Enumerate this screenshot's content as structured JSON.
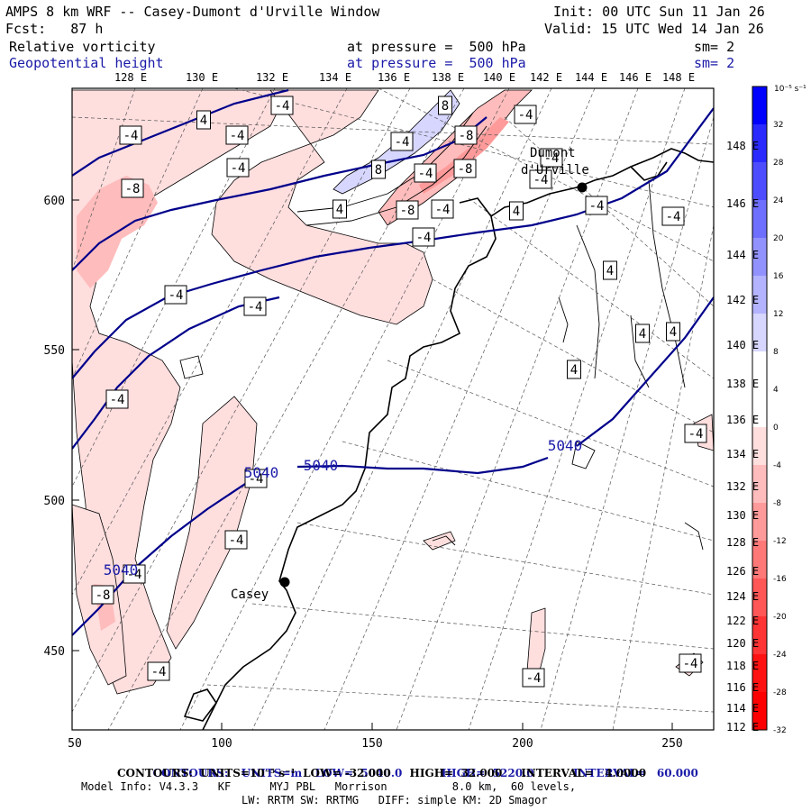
{
  "header": {
    "title": "AMPS 8 km WRF -- Casey-Dumont d'Urville Window",
    "init": "Init: 00 UTC Sun 11 Jan 26",
    "fcst": "Fcst:   87 h",
    "valid": "Valid: 15 UTC Wed 14 Jan 26",
    "field1": {
      "name": "Relative vorticity",
      "pressure": "at pressure =  500 hPa",
      "sm": "sm= 2"
    },
    "field2": {
      "name": "Geopotential height",
      "pressure": "at pressure =  500 hPa",
      "sm": "sm= 2"
    }
  },
  "axes": {
    "top_lon_labels": [
      "128 E",
      "130 E",
      "132 E",
      "134 E",
      "136 E",
      "138 E",
      "140 E",
      "142 E",
      "144 E",
      "146 E",
      "148 E"
    ],
    "right_lon_labels": [
      "148 E",
      "146 E",
      "144 E",
      "142 E",
      "140 E",
      "138 E",
      "136 E",
      "134 E",
      "132 E",
      "130 E",
      "128 E",
      "126 E",
      "124 E",
      "122 E",
      "120 E",
      "118 E",
      "116 E",
      "114 E",
      "112 E"
    ],
    "x_ticks": [
      "50",
      "100",
      "150",
      "200",
      "250"
    ],
    "y_ticks": [
      "600",
      "550",
      "500",
      "450"
    ]
  },
  "colorbar": {
    "unit_label": "10⁻⁵ s⁻¹",
    "labels": [
      "32",
      "28",
      "24",
      "20",
      "16",
      "12",
      "8",
      "4",
      "0",
      "-4",
      "-8",
      "-12",
      "-16",
      "-20",
      "-24",
      "-28",
      "-32"
    ],
    "colors": [
      "#0000ff",
      "#2a2aff",
      "#4d4dff",
      "#6f6fff",
      "#9292ff",
      "#b3b3ff",
      "#d6d6ff",
      "#ffffff",
      "#ffffff",
      "#ffdede",
      "#ffbcbc",
      "#ff9a9a",
      "#ff7878",
      "#ff5656",
      "#ff3434",
      "#ff1212",
      "#ff0000"
    ]
  },
  "places": {
    "dumont": "Dumont\nd'Urville",
    "casey": "Casey"
  },
  "contour_labels": {
    "height": [
      "5040",
      "5040",
      "5040",
      "5040"
    ],
    "vorticity": [
      "-4",
      "-4",
      "4",
      "-4",
      "-4",
      "-8",
      "-4",
      "8",
      "-8",
      "-4",
      "-4",
      "8",
      "-8",
      "-4",
      "-4",
      "4",
      "-8",
      "4",
      "-4",
      "-4",
      "-4",
      "4",
      "4",
      "4",
      "4",
      "-4",
      "-4",
      "-4",
      "-4",
      "-4",
      "-4",
      "-8",
      "-4",
      "-4",
      "-4",
      "-4",
      "-4"
    ]
  },
  "footer": {
    "line1_contours": "CONTOURS:",
    "line1_units": "UNITS=m",
    "line1_low": "LOW=  5040.0",
    "line1_high": "HIGH=  5220.0",
    "line1_interval": "INTERVAL=   60.000",
    "line2": "CONTOURS:  UNITS=10⁻⁵ s⁻¹  LOW= -32.000     HIGH=  32.000     INTERVAL=   4.0000",
    "line3": "Model Info: V4.3.3   KF      MYJ PBL   Morrison          8.0 km,  60 levels,",
    "line4": "LW: RRTM SW: RRTMG   DIFF: simple KM: 2D Smagor"
  },
  "colors": {
    "height_contour": "#00008b",
    "text_blue": "#1a1aa8",
    "pink_fill": "#ffdede",
    "pink_fill2": "#ffbcbc",
    "blue_fill": "#d6d6ff"
  }
}
